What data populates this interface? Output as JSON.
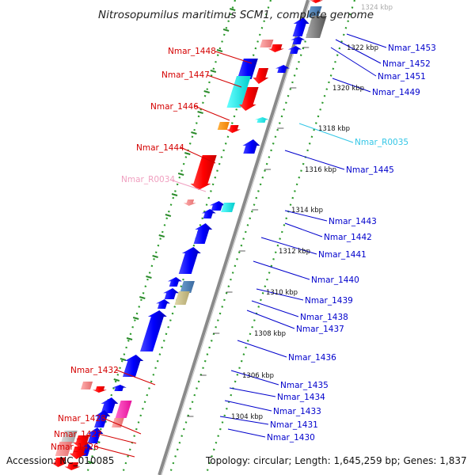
{
  "title": "Nitrosopumilus maritimus SCM1, complete genome",
  "accession": "Accession: NC_010085",
  "summary": "Topology: circular; Length: 1,645,259 bp; Genes: 1,837",
  "colors": {
    "forward_label": "#d40000",
    "reverse_label": "#0000cc",
    "rna_forward_label": "#f0a0c0",
    "rna_reverse_label": "#33c6e6",
    "backbone": "#888888",
    "tick": "#2a9a2a",
    "cds_forward": "#ff0000",
    "cds_reverse": "#0000ff"
  },
  "ticks": [
    {
      "label": "1324 kbp"
    },
    {
      "label": "1322 kbp"
    },
    {
      "label": "1320 kbp"
    },
    {
      "label": "1318 kbp"
    },
    {
      "label": "1316 kbp"
    },
    {
      "label": "1314 kbp"
    },
    {
      "label": "1312 kbp"
    },
    {
      "label": "1310 kbp"
    },
    {
      "label": "1308 kbp"
    },
    {
      "label": "1306 kbp"
    },
    {
      "label": "1304 kbp"
    }
  ],
  "forward_genes": [
    {
      "label": "Nmar_1448",
      "type": "CDS"
    },
    {
      "label": "Nmar_1447",
      "type": "CDS"
    },
    {
      "label": "Nmar_1446",
      "type": "CDS"
    },
    {
      "label": "Nmar_1444",
      "type": "CDS"
    },
    {
      "label": "Nmar_R0034",
      "type": "rRNA"
    },
    {
      "label": "Nmar_1432",
      "type": "CDS"
    },
    {
      "label": "Nmar_1428",
      "type": "CDS"
    },
    {
      "label": "Nmar_1427",
      "type": "CDS"
    },
    {
      "label": "Nmar_1426",
      "type": "CDS"
    }
  ],
  "reverse_genes": [
    {
      "label": "Nmar_1453",
      "type": "CDS"
    },
    {
      "label": "Nmar_1452",
      "type": "CDS"
    },
    {
      "label": "Nmar_1451",
      "type": "CDS"
    },
    {
      "label": "Nmar_1449",
      "type": "CDS"
    },
    {
      "label": "Nmar_R0035",
      "type": "tRNA"
    },
    {
      "label": "Nmar_1445",
      "type": "CDS"
    },
    {
      "label": "Nmar_1443",
      "type": "CDS"
    },
    {
      "label": "Nmar_1442",
      "type": "CDS"
    },
    {
      "label": "Nmar_1441",
      "type": "CDS"
    },
    {
      "label": "Nmar_1440",
      "type": "CDS"
    },
    {
      "label": "Nmar_1439",
      "type": "CDS"
    },
    {
      "label": "Nmar_1438",
      "type": "CDS"
    },
    {
      "label": "Nmar_1437",
      "type": "CDS"
    },
    {
      "label": "Nmar_1436",
      "type": "CDS"
    },
    {
      "label": "Nmar_1435",
      "type": "CDS"
    },
    {
      "label": "Nmar_1434",
      "type": "CDS"
    },
    {
      "label": "Nmar_1433",
      "type": "CDS"
    },
    {
      "label": "Nmar_1431",
      "type": "CDS"
    },
    {
      "label": "Nmar_1430",
      "type": "CDS"
    }
  ]
}
